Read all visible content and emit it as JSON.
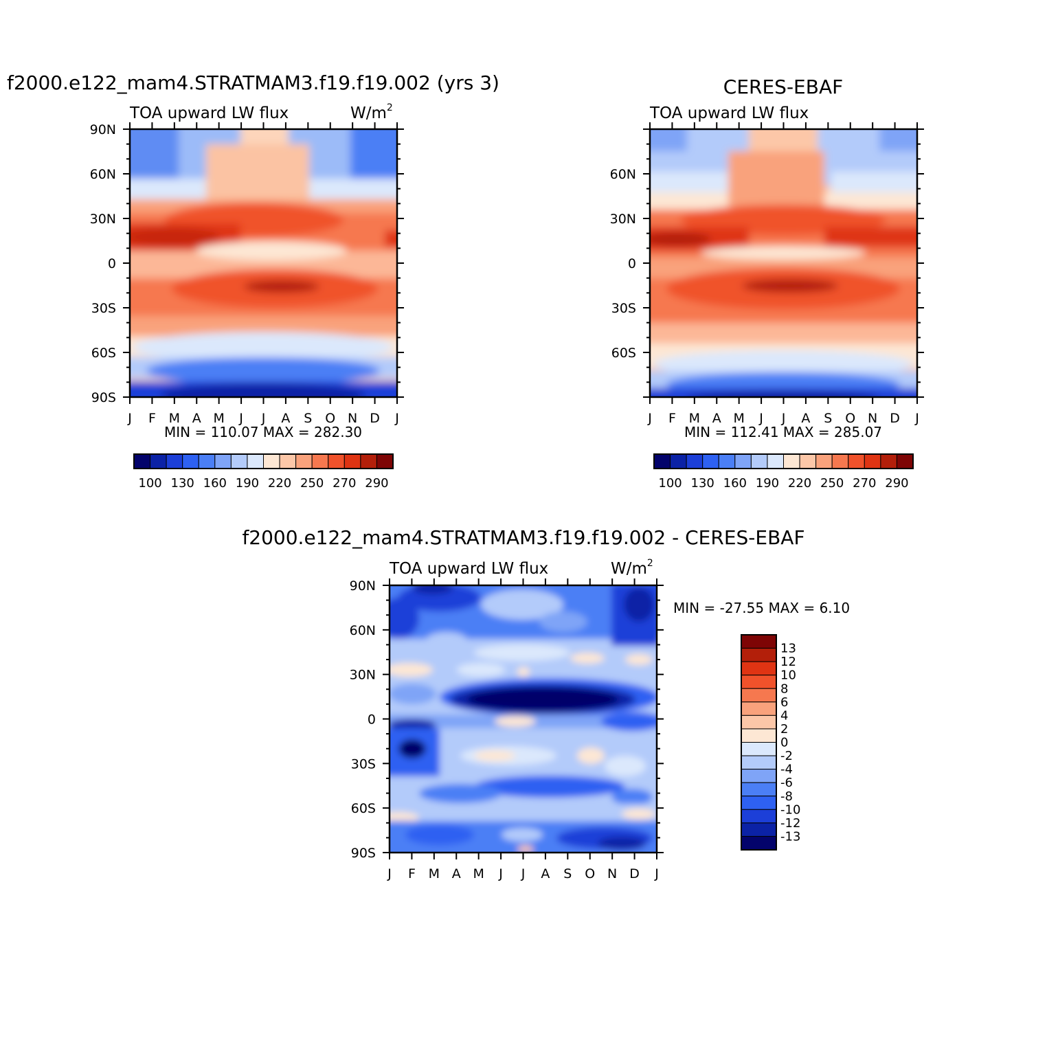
{
  "months": [
    "J",
    "F",
    "M",
    "A",
    "M",
    "J",
    "J",
    "A",
    "S",
    "O",
    "N",
    "D",
    "J"
  ],
  "lat_ticks": [
    "90N",
    "60N",
    "30N",
    "0",
    "30S",
    "60S",
    "90S"
  ],
  "lat_values": [
    90,
    60,
    30,
    0,
    -30,
    -60,
    -90
  ],
  "colors": {
    "abs_palette": [
      "#03036b",
      "#0b22a6",
      "#1c3fd8",
      "#2e61f2",
      "#4b7ff5",
      "#7fa4f7",
      "#b3cbfa",
      "#dbe8fc",
      "#fde7d4",
      "#fcc7a8",
      "#f9a27c",
      "#f6784f",
      "#f0522b",
      "#df3413",
      "#b31f0a",
      "#7e0505"
    ],
    "diff_palette": [
      "#03036b",
      "#0b22a6",
      "#1c3fd8",
      "#2e61f2",
      "#4b7ff5",
      "#7fa4f7",
      "#b3cbfa",
      "#dbe8fc",
      "#fde7d4",
      "#fcc7a8",
      "#f9a27c",
      "#f6784f",
      "#f0522b",
      "#df3413",
      "#b31f0a",
      "#7e0505"
    ]
  },
  "chart_data": [
    {
      "type": "heatmap",
      "title": "f2000.e122_mam4.STRATMAM3.f19.f19.002 (yrs 3)",
      "left_label": "TOA upward LW flux",
      "units": "W/m",
      "units_sup": "2",
      "xlabel": "",
      "ylabel": "",
      "x": [
        "J",
        "F",
        "M",
        "A",
        "M",
        "J",
        "J",
        "A",
        "S",
        "O",
        "N",
        "D",
        "J"
      ],
      "ylim": [
        -90,
        90
      ],
      "min_label": "MIN",
      "min": "110.07",
      "max_label": "MAX",
      "max": "282.30",
      "colorbar_labels": [
        "100",
        "130",
        "160",
        "190",
        "220",
        "250",
        "270",
        "290"
      ]
    },
    {
      "type": "heatmap",
      "title": "CERES-EBAF",
      "left_label": "TOA upward LW flux",
      "units": "",
      "units_sup": "",
      "xlabel": "",
      "ylabel": "",
      "x": [
        "J",
        "F",
        "M",
        "A",
        "M",
        "J",
        "J",
        "A",
        "S",
        "O",
        "N",
        "D",
        "J"
      ],
      "ylim": [
        -90,
        90
      ],
      "min_label": "MIN",
      "min": "112.41",
      "max_label": "MAX",
      "max": "285.07",
      "colorbar_labels": [
        "100",
        "130",
        "160",
        "190",
        "220",
        "250",
        "270",
        "290"
      ]
    },
    {
      "type": "heatmap",
      "title": "f2000.e122_mam4.STRATMAM3.f19.f19.002 - CERES-EBAF",
      "left_label": "TOA upward LW flux",
      "units": "W/m",
      "units_sup": "2",
      "xlabel": "",
      "ylabel": "",
      "x": [
        "J",
        "F",
        "M",
        "A",
        "M",
        "J",
        "J",
        "A",
        "S",
        "O",
        "N",
        "D",
        "J"
      ],
      "ylim": [
        -90,
        90
      ],
      "min_label": "MIN",
      "min": "-27.55",
      "max_label": "MAX",
      "max": "6.10",
      "colorbar_labels": [
        "13",
        "12",
        "10",
        "8",
        "6",
        "4",
        "2",
        "0",
        "-2",
        "-4",
        "-6",
        "-8",
        "-10",
        "-12",
        "-13"
      ]
    }
  ]
}
